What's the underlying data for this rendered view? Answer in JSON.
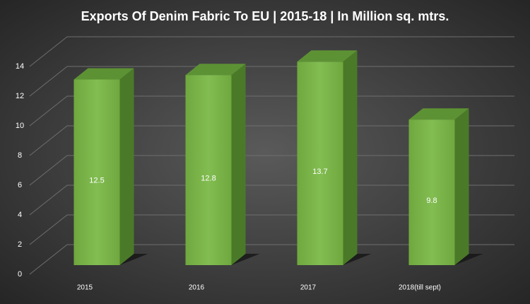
{
  "chart_data": {
    "type": "bar",
    "title": "Exports Of Denim Fabric  To EU | 2015-18 | In Million sq. mtrs.",
    "categories": [
      "2015",
      "2016",
      "2017",
      "2018(till sept)"
    ],
    "values": [
      12.5,
      12.8,
      13.7,
      9.8
    ],
    "color": "#76b043",
    "ylim": [
      0,
      14
    ],
    "yticks": [
      0,
      2,
      4,
      6,
      8,
      10,
      12,
      14
    ],
    "grid": true
  }
}
